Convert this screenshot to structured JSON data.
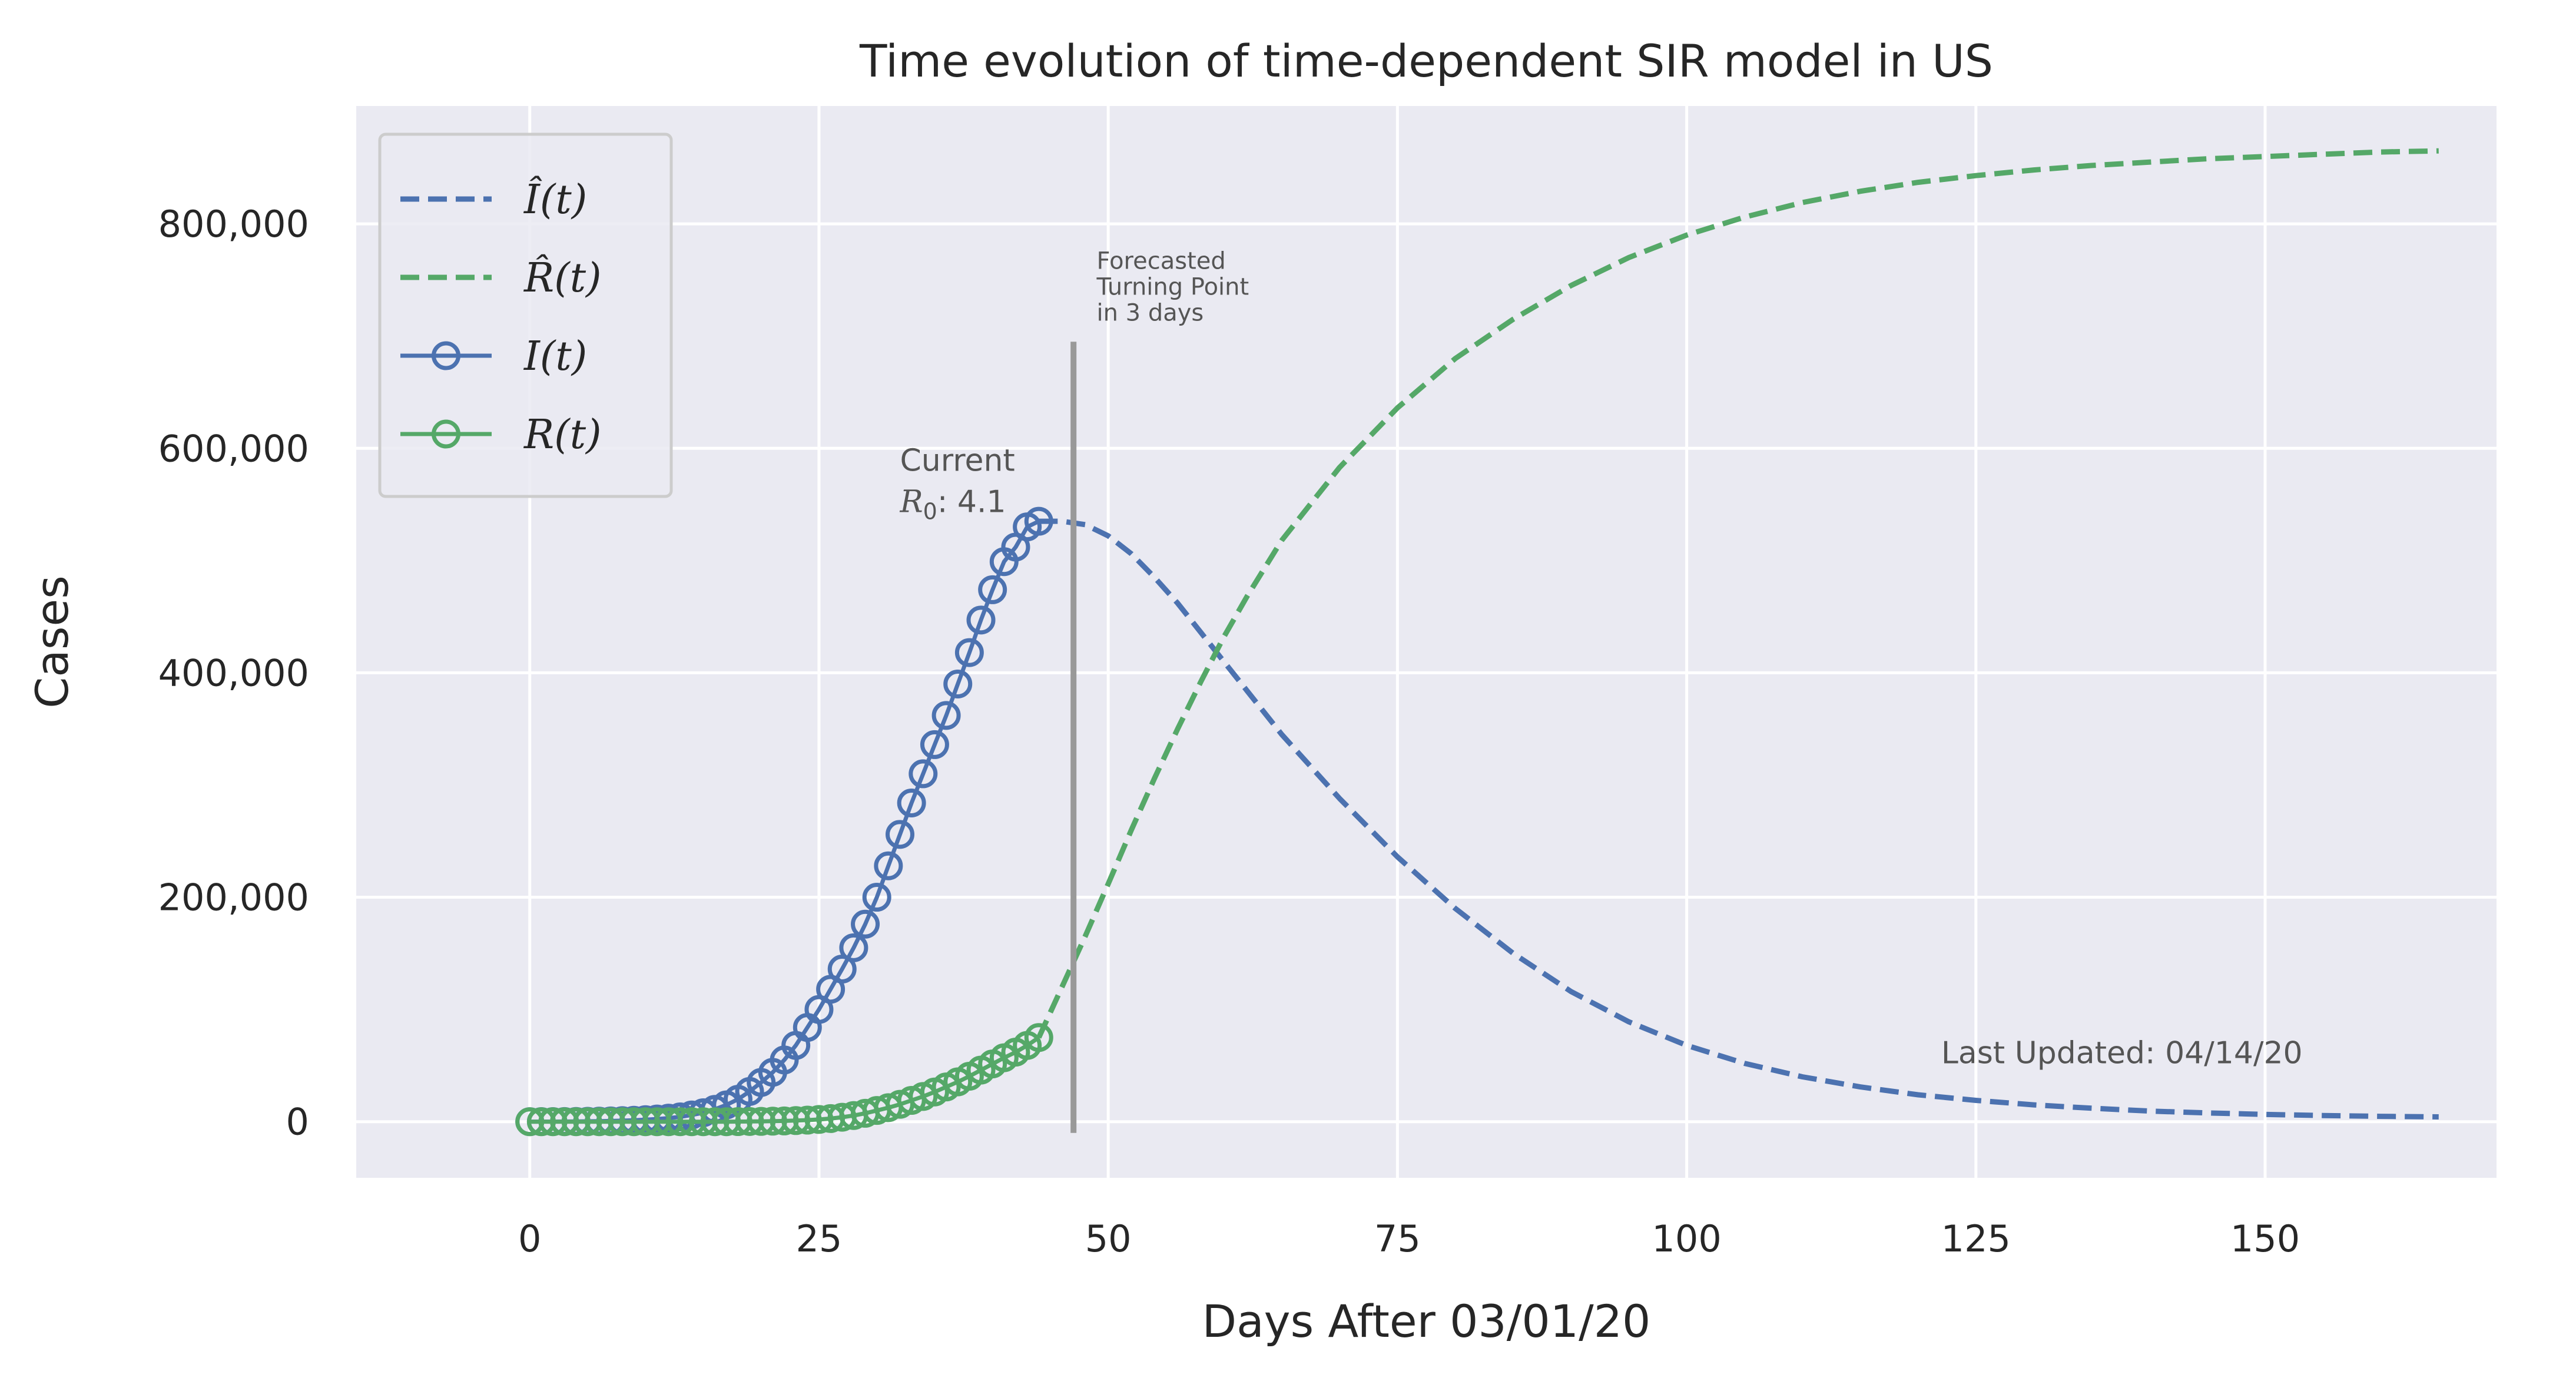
{
  "chart_data": {
    "type": "line",
    "title": "Time evolution of time-dependent SIR model in US",
    "xlabel": "Days After 03/01/20",
    "ylabel": "Cases",
    "xlim": [
      -15,
      170
    ],
    "ylim": [
      -50000,
      905000
    ],
    "x_ticks": [
      0,
      25,
      50,
      75,
      100,
      125,
      150
    ],
    "x_tick_labels": [
      "0",
      "25",
      "50",
      "75",
      "100",
      "125",
      "150"
    ],
    "y_ticks": [
      0,
      200000,
      400000,
      600000,
      800000
    ],
    "y_tick_labels": [
      "0",
      "200,000",
      "400,000",
      "600,000",
      "800,000"
    ],
    "grid": true,
    "legend_position": "top-left",
    "legend": [
      {
        "key": "I_hat",
        "text": "Î(t)",
        "style": "dashed",
        "color": "#4c72b0"
      },
      {
        "key": "R_hat",
        "text": "R̂(t)",
        "style": "dashed",
        "color": "#55a868"
      },
      {
        "key": "I",
        "text": "I(t)",
        "style": "solid-circle",
        "color": "#4c72b0"
      },
      {
        "key": "R",
        "text": "R(t)",
        "style": "solid-circle",
        "color": "#55a868"
      }
    ],
    "series": [
      {
        "key": "I",
        "style": "solid-circle",
        "color": "#4c72b0",
        "x": [
          0,
          1,
          2,
          3,
          4,
          5,
          6,
          7,
          8,
          9,
          10,
          11,
          12,
          13,
          14,
          15,
          16,
          17,
          18,
          19,
          20,
          21,
          22,
          23,
          24,
          25,
          26,
          27,
          28,
          29,
          30,
          31,
          32,
          33,
          34,
          35,
          36,
          37,
          38,
          39,
          40,
          41,
          42,
          43,
          44
        ],
        "values": [
          50,
          90,
          130,
          180,
          250,
          350,
          500,
          700,
          950,
          1300,
          1800,
          2400,
          3200,
          4300,
          6000,
          8000,
          11000,
          15000,
          20000,
          27000,
          35000,
          44000,
          55000,
          68000,
          84000,
          100000,
          118000,
          136000,
          155000,
          176000,
          200000,
          228000,
          256000,
          284000,
          310000,
          336000,
          362000,
          390000,
          418000,
          447000,
          474000,
          499000,
          512000,
          530000,
          535000
        ]
      },
      {
        "key": "R",
        "style": "solid-circle",
        "color": "#55a868",
        "x": [
          0,
          1,
          2,
          3,
          4,
          5,
          6,
          7,
          8,
          9,
          10,
          11,
          12,
          13,
          14,
          15,
          16,
          17,
          18,
          19,
          20,
          21,
          22,
          23,
          24,
          25,
          26,
          27,
          28,
          29,
          30,
          31,
          32,
          33,
          34,
          35,
          36,
          37,
          38,
          39,
          40,
          41,
          42,
          43,
          44
        ],
        "values": [
          0,
          0,
          0,
          0,
          0,
          0,
          0,
          0,
          0,
          0,
          0,
          0,
          0,
          0,
          0,
          0,
          0,
          0,
          100,
          200,
          300,
          500,
          700,
          1000,
          1400,
          2000,
          2800,
          4000,
          5500,
          7500,
          10000,
          12500,
          15500,
          19000,
          22500,
          26500,
          31000,
          35500,
          40500,
          46000,
          51500,
          57000,
          62000,
          68000,
          75000
        ]
      },
      {
        "key": "I_hat",
        "style": "dashed",
        "color": "#4c72b0",
        "x": [
          44,
          46,
          48,
          50,
          52,
          54,
          56,
          58,
          60,
          62,
          65,
          70,
          75,
          80,
          85,
          90,
          95,
          100,
          105,
          110,
          115,
          120,
          125,
          130,
          135,
          140,
          145,
          150,
          155,
          160,
          165
        ],
        "values": [
          535000,
          535000,
          532000,
          522000,
          506000,
          485000,
          462000,
          436000,
          410000,
          384000,
          345000,
          288000,
          236000,
          190000,
          150000,
          116000,
          89000,
          68000,
          52000,
          40000,
          31000,
          24000,
          19000,
          15000,
          12000,
          9500,
          7800,
          6500,
          5500,
          4800,
          4300
        ]
      },
      {
        "key": "R_hat",
        "style": "dashed",
        "color": "#55a868",
        "x": [
          44,
          46,
          48,
          50,
          52,
          54,
          56,
          58,
          60,
          62,
          65,
          70,
          75,
          80,
          85,
          90,
          95,
          100,
          105,
          110,
          115,
          120,
          125,
          130,
          135,
          140,
          145,
          150,
          155,
          160,
          165
        ],
        "values": [
          75000,
          120000,
          165000,
          212000,
          260000,
          306000,
          350000,
          392000,
          432000,
          468000,
          518000,
          583000,
          636000,
          680000,
          715000,
          745000,
          770000,
          790000,
          806000,
          819000,
          829000,
          837000,
          843000,
          848000,
          852000,
          855000,
          858000,
          860000,
          862000,
          864000,
          865000
        ]
      }
    ],
    "vertical_line": {
      "x": 47,
      "y_from": -10000,
      "y_to": 695000,
      "color": "#999999"
    },
    "annotations": {
      "turning_point": {
        "x": 49,
        "y": 760000,
        "lines": [
          "Forecasted",
          "Turning Point",
          "in 3 days"
        ]
      },
      "current_r0": {
        "x": 32,
        "y": 580000,
        "line1": "Current",
        "r_label": "R",
        "r_sub": "0",
        "r_value": ": 4.1"
      },
      "last_updated": {
        "x": 122,
        "y": 52000,
        "text": "Last Updated: 04/14/20"
      }
    },
    "colors": {
      "plot_background": "#eaeaf2",
      "grid": "#ffffff",
      "text": "#262626",
      "annotation_text": "#555555"
    }
  }
}
